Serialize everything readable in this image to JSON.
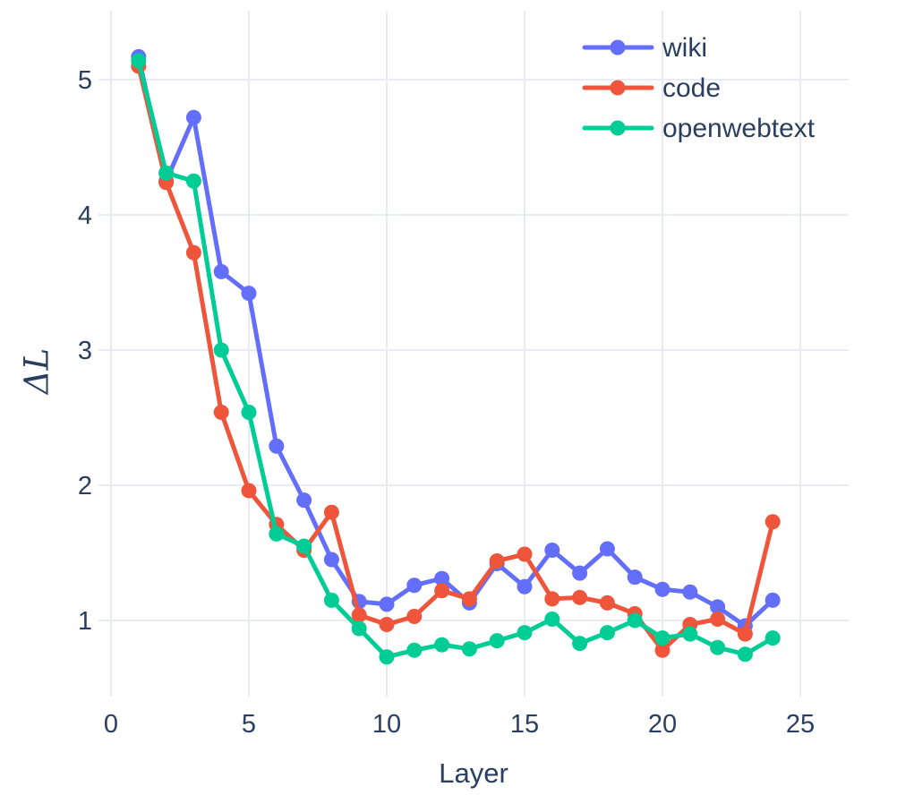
{
  "chart_data": {
    "type": "line",
    "title": "",
    "xlabel": "Layer",
    "ylabel": "ΔL",
    "x": [
      1,
      2,
      3,
      4,
      5,
      6,
      7,
      8,
      9,
      10,
      11,
      12,
      13,
      14,
      15,
      16,
      17,
      18,
      19,
      20,
      21,
      22,
      23,
      24
    ],
    "series": [
      {
        "name": "wiki",
        "color": "#636efa",
        "values": [
          5.17,
          4.25,
          4.72,
          3.58,
          3.42,
          2.29,
          1.89,
          1.45,
          1.14,
          1.12,
          1.26,
          1.31,
          1.13,
          1.42,
          1.25,
          1.52,
          1.35,
          1.53,
          1.32,
          1.23,
          1.21,
          1.1,
          0.96,
          1.15
        ]
      },
      {
        "name": "code",
        "color": "#ef553b",
        "values": [
          5.1,
          4.24,
          3.72,
          2.54,
          1.96,
          1.71,
          1.52,
          1.8,
          1.04,
          0.97,
          1.03,
          1.22,
          1.16,
          1.44,
          1.49,
          1.16,
          1.17,
          1.13,
          1.05,
          0.78,
          0.97,
          1.01,
          0.9,
          1.73
        ]
      },
      {
        "name": "openwebtext",
        "color": "#00cc96",
        "values": [
          5.14,
          4.31,
          4.25,
          3.0,
          2.54,
          1.64,
          1.55,
          1.15,
          0.94,
          0.73,
          0.78,
          0.82,
          0.79,
          0.85,
          0.91,
          1.01,
          0.83,
          0.91,
          1.0,
          0.87,
          0.9,
          0.8,
          0.75,
          0.87
        ]
      }
    ],
    "xticks": [
      0,
      5,
      10,
      15,
      20,
      25
    ],
    "yticks": [
      1,
      2,
      3,
      4,
      5
    ],
    "xlim": [
      -0.45,
      26.6
    ],
    "ylim": [
      0.44,
      5.49
    ],
    "grid": true,
    "legend_position": "top-right",
    "colors": {
      "axis_text": "#2a3f5f",
      "gridline": "#e9ebf3",
      "background": "#ffffff"
    }
  }
}
